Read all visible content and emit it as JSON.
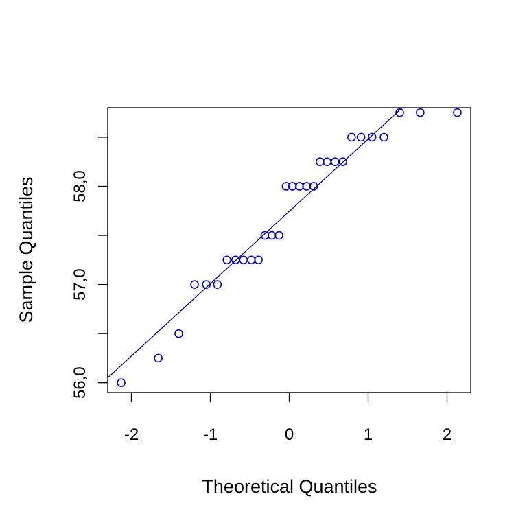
{
  "chart_data": {
    "type": "scatter",
    "title": "",
    "xlabel": "Theoretical Quantiles",
    "ylabel": "Sample Quantiles",
    "xlim": [
      -2.3,
      2.3
    ],
    "ylim": [
      55.9,
      58.8
    ],
    "x_ticks": [
      -2,
      -1,
      0,
      1,
      2
    ],
    "x_tick_labels": [
      "-2",
      "-1",
      "0",
      "1",
      "2"
    ],
    "y_ticks": [
      56.0,
      56.5,
      57.0,
      57.5,
      58.0,
      58.5
    ],
    "y_tick_labels": [
      "56,0",
      "",
      "57,0",
      "",
      "58,0",
      ""
    ],
    "grid": false,
    "legend": false,
    "point_color": "#0000CD",
    "line_color": "#000080",
    "reference_line": {
      "x": [
        -2.3,
        1.5
      ],
      "y": [
        56.05,
        58.85
      ]
    },
    "points": [
      {
        "x": -2.13,
        "y": 56.0
      },
      {
        "x": -1.66,
        "y": 56.25
      },
      {
        "x": -1.4,
        "y": 56.5
      },
      {
        "x": -1.2,
        "y": 57.0
      },
      {
        "x": -1.05,
        "y": 57.0
      },
      {
        "x": -0.91,
        "y": 57.0
      },
      {
        "x": -0.79,
        "y": 57.25
      },
      {
        "x": -0.68,
        "y": 57.25
      },
      {
        "x": -0.58,
        "y": 57.25
      },
      {
        "x": -0.48,
        "y": 57.25
      },
      {
        "x": -0.39,
        "y": 57.25
      },
      {
        "x": -0.31,
        "y": 57.5
      },
      {
        "x": -0.22,
        "y": 57.5
      },
      {
        "x": -0.13,
        "y": 57.5
      },
      {
        "x": -0.04,
        "y": 58.0
      },
      {
        "x": 0.04,
        "y": 58.0
      },
      {
        "x": 0.13,
        "y": 58.0
      },
      {
        "x": 0.22,
        "y": 58.0
      },
      {
        "x": 0.31,
        "y": 58.0
      },
      {
        "x": 0.39,
        "y": 58.25
      },
      {
        "x": 0.48,
        "y": 58.25
      },
      {
        "x": 0.58,
        "y": 58.25
      },
      {
        "x": 0.68,
        "y": 58.25
      },
      {
        "x": 0.79,
        "y": 58.5
      },
      {
        "x": 0.91,
        "y": 58.5
      },
      {
        "x": 1.05,
        "y": 58.5
      },
      {
        "x": 1.2,
        "y": 58.5
      },
      {
        "x": 1.4,
        "y": 58.75
      },
      {
        "x": 1.66,
        "y": 58.75
      },
      {
        "x": 2.13,
        "y": 58.75
      }
    ]
  }
}
